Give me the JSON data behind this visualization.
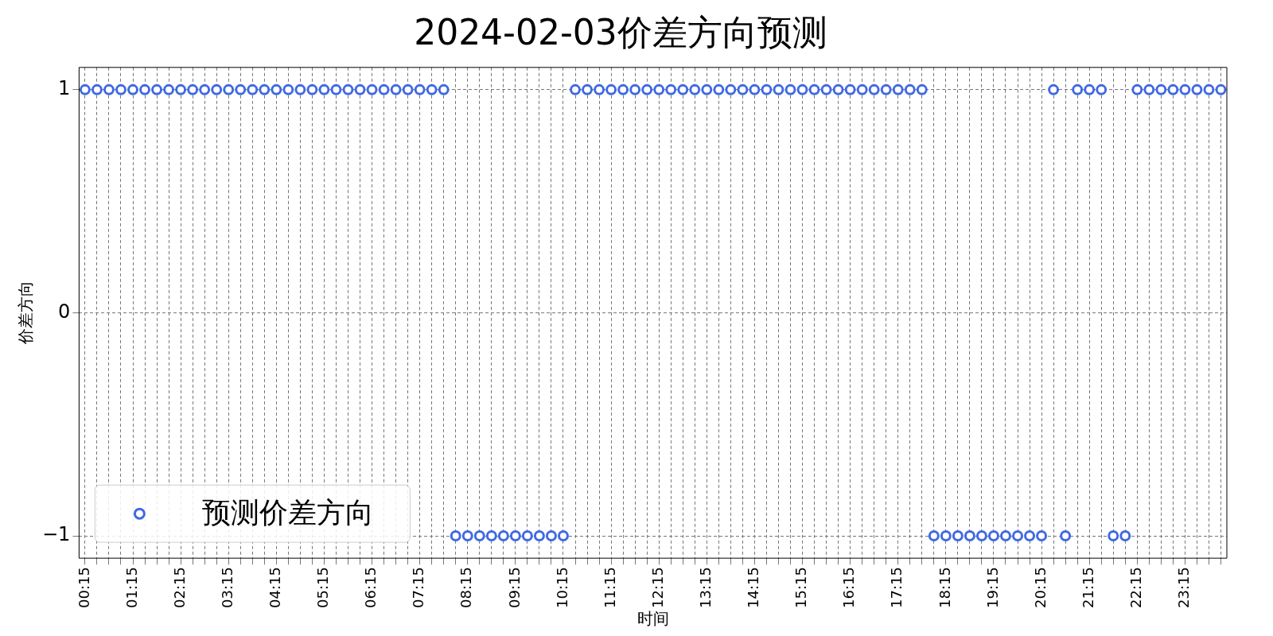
{
  "chart_data": {
    "type": "scatter",
    "title": "2024-02-03价差方向预测",
    "xlabel": "时间",
    "ylabel": "价差方向",
    "categories": [
      "00:15",
      null,
      null,
      null,
      "01:15",
      null,
      null,
      null,
      "02:15",
      null,
      null,
      null,
      "03:15",
      null,
      null,
      null,
      "04:15",
      null,
      null,
      null,
      "05:15",
      null,
      null,
      null,
      "06:15",
      null,
      null,
      null,
      "07:15",
      null,
      null,
      null,
      "08:15",
      null,
      null,
      null,
      "09:15",
      null,
      null,
      null,
      "10:15",
      null,
      null,
      null,
      "11:15",
      null,
      null,
      null,
      "12:15",
      null,
      null,
      null,
      "13:15",
      null,
      null,
      null,
      "14:15",
      null,
      null,
      null,
      "15:15",
      null,
      null,
      null,
      "16:15",
      null,
      null,
      null,
      "17:15",
      null,
      null,
      null,
      "18:15",
      null,
      null,
      null,
      "19:15",
      null,
      null,
      null,
      "20:15",
      null,
      null,
      null,
      "21:15",
      null,
      null,
      null,
      "22:15",
      null,
      null,
      null,
      "23:15",
      null,
      null,
      null
    ],
    "series": [
      {
        "name": "预测价差方向",
        "color": "#4169e1",
        "values": [
          1,
          1,
          1,
          1,
          1,
          1,
          1,
          1,
          1,
          1,
          1,
          1,
          1,
          1,
          1,
          1,
          1,
          1,
          1,
          1,
          1,
          1,
          1,
          1,
          1,
          1,
          1,
          1,
          1,
          1,
          1,
          -1,
          -1,
          -1,
          -1,
          -1,
          -1,
          -1,
          -1,
          -1,
          -1,
          1,
          1,
          1,
          1,
          1,
          1,
          1,
          1,
          1,
          1,
          1,
          1,
          1,
          1,
          1,
          1,
          1,
          1,
          1,
          1,
          1,
          1,
          1,
          1,
          1,
          1,
          1,
          1,
          1,
          1,
          -1,
          -1,
          -1,
          -1,
          -1,
          -1,
          -1,
          -1,
          -1,
          -1,
          1,
          -1,
          1,
          1,
          1,
          -1,
          -1,
          1,
          1,
          1,
          1,
          1,
          1,
          1,
          1
        ]
      }
    ],
    "ylim": [
      -1.1,
      1.1
    ],
    "yticks": [
      {
        "value": -1,
        "label": "−1"
      },
      0,
      1
    ],
    "grid": true,
    "legend": "bottom left",
    "marker": "circle"
  }
}
